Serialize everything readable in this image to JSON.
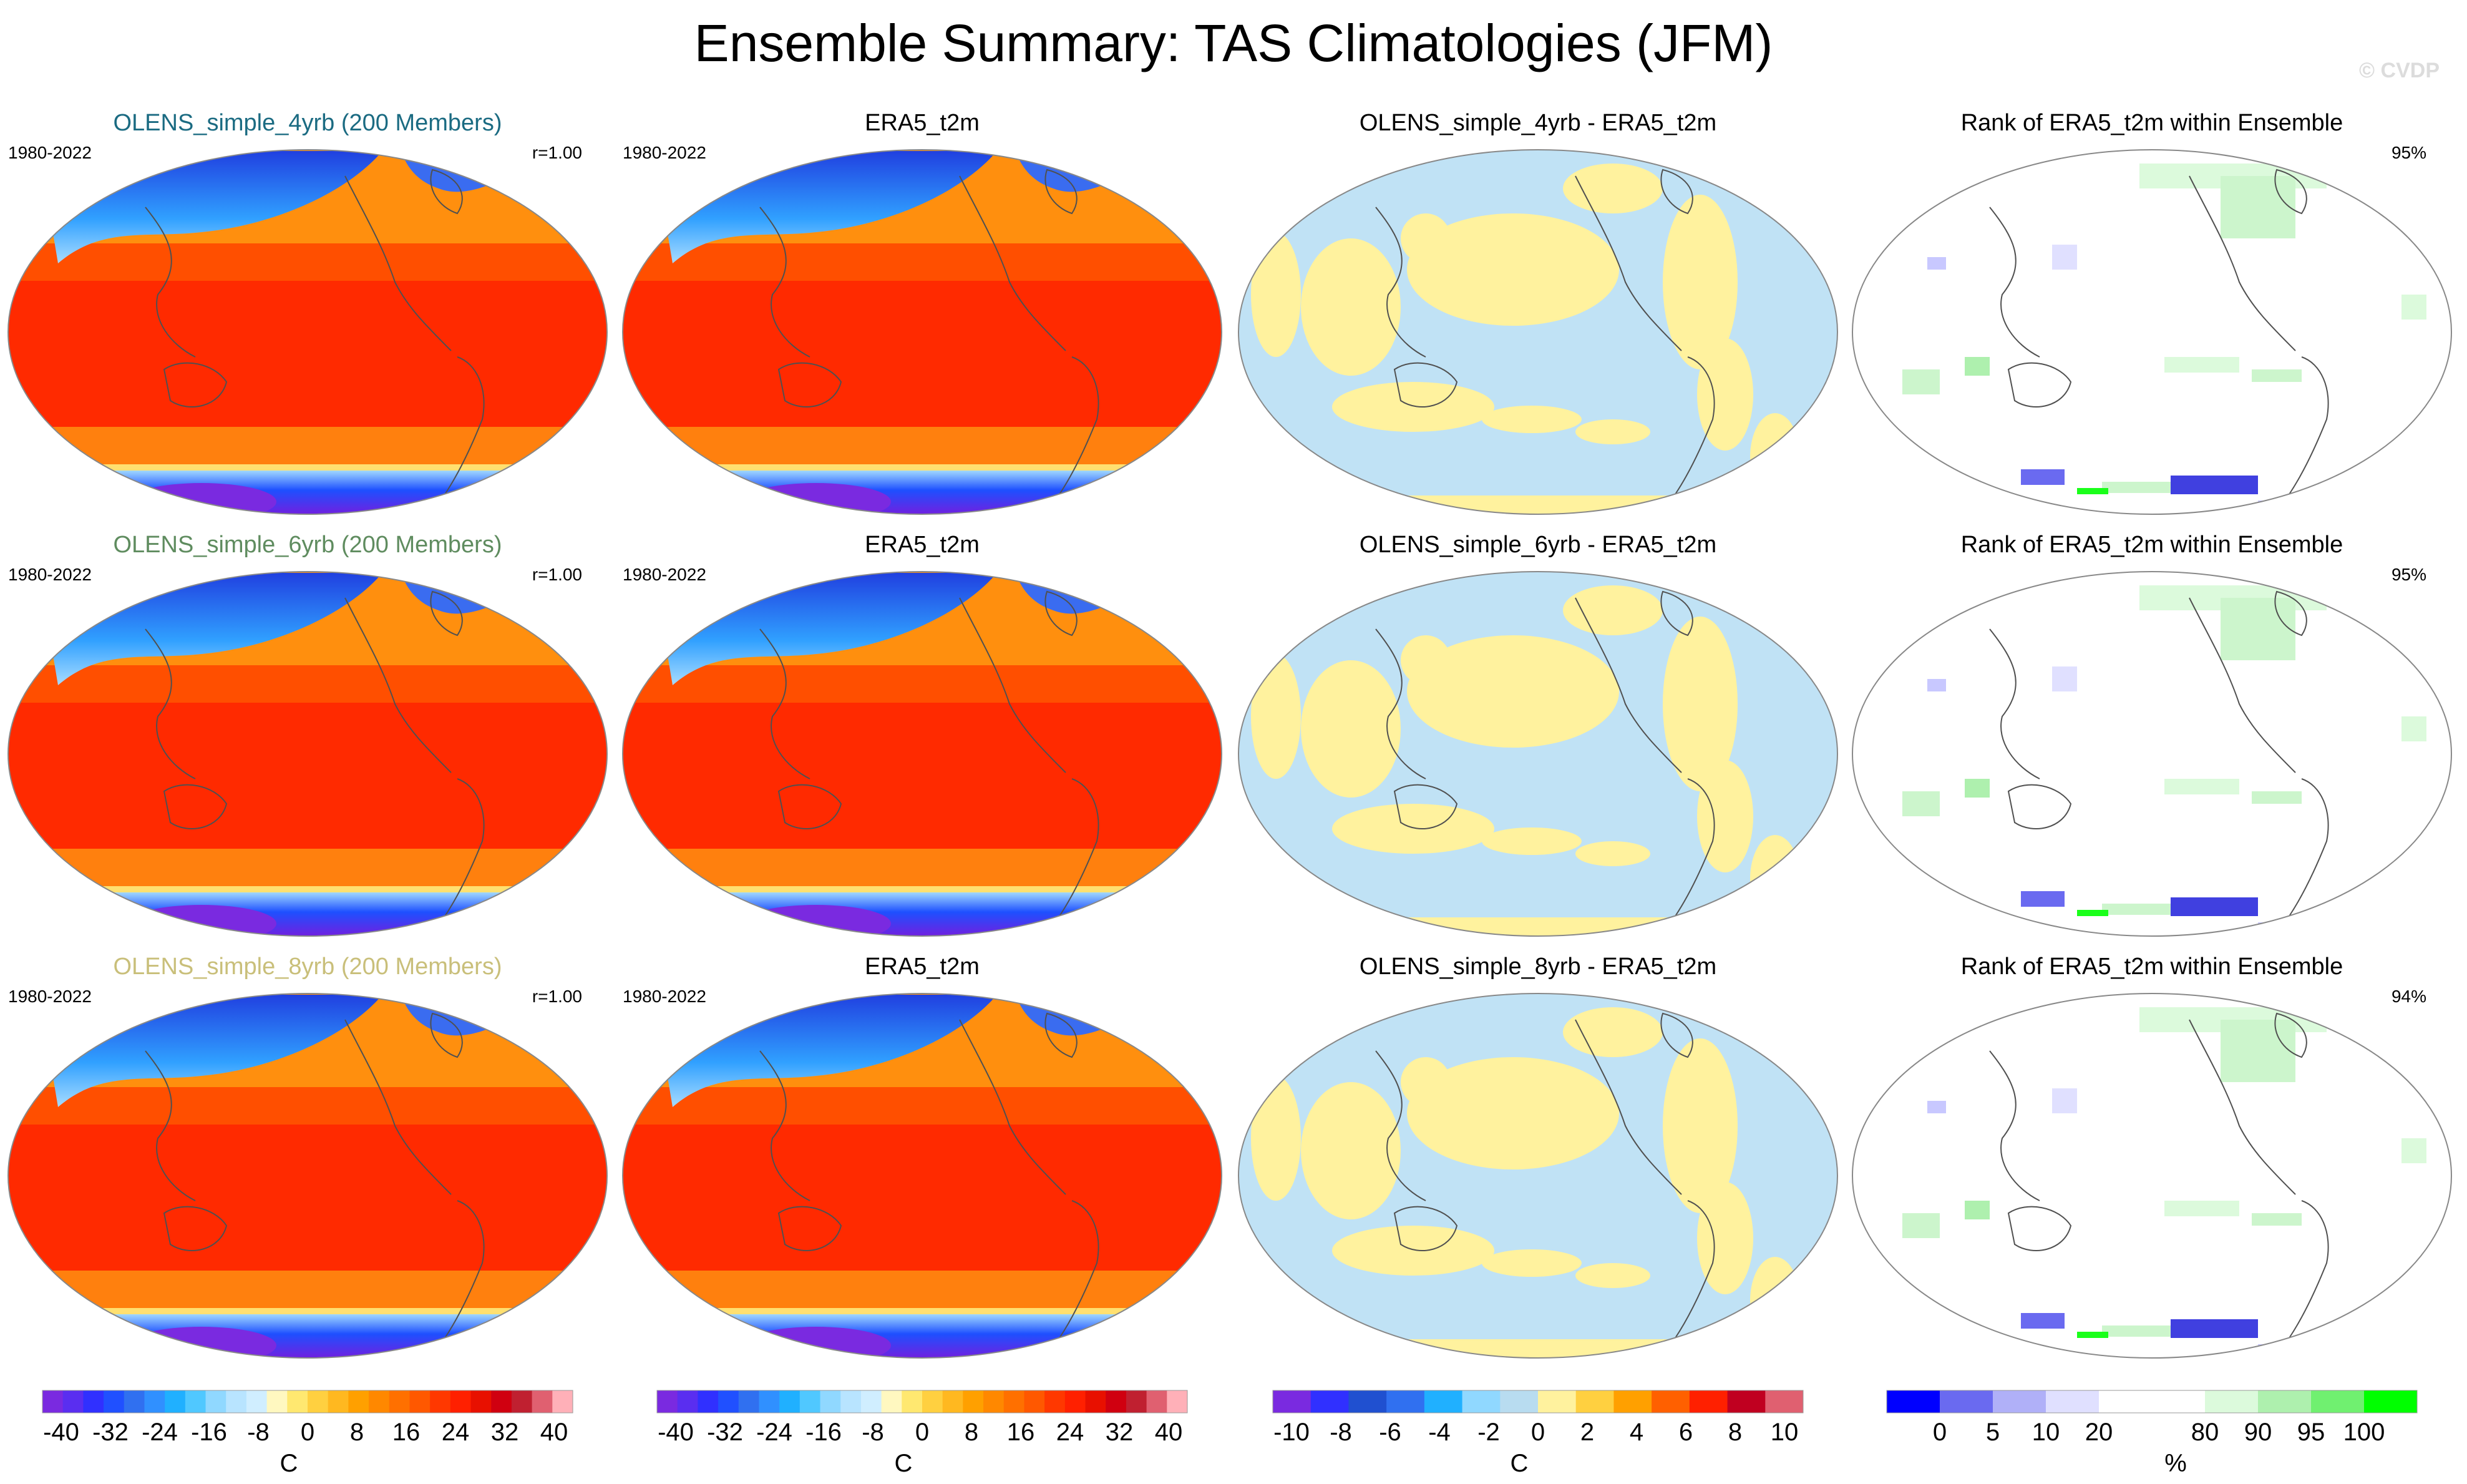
{
  "title": "Ensemble Summary: TAS Climatologies (JFM)",
  "copyright": "© CVDP",
  "rows": [
    {
      "model_title": "OLENS_simple_4yrb (200 Members)",
      "model_color": "#1b6b82",
      "period": "1980-2022",
      "r_label": "r=1.00",
      "obs_title": "ERA5_t2m",
      "obs_period": "1980-2022",
      "diff_title": "OLENS_simple_4yrb - ERA5_t2m",
      "rank_title": "Rank of ERA5_t2m within Ensemble",
      "rank_pct": "95%"
    },
    {
      "model_title": "OLENS_simple_6yrb (200 Members)",
      "model_color": "#5f8c5f",
      "period": "1980-2022",
      "r_label": "r=1.00",
      "obs_title": "ERA5_t2m",
      "obs_period": "1980-2022",
      "diff_title": "OLENS_simple_6yrb - ERA5_t2m",
      "rank_title": "Rank of ERA5_t2m within Ensemble",
      "rank_pct": "95%"
    },
    {
      "model_title": "OLENS_simple_8yrb (200 Members)",
      "model_color": "#c9bf7a",
      "period": "1980-2022",
      "r_label": "r=1.00",
      "obs_title": "ERA5_t2m",
      "obs_period": "1980-2022",
      "diff_title": "OLENS_simple_8yrb - ERA5_t2m",
      "rank_title": "Rank of ERA5_t2m within Ensemble",
      "rank_pct": "94%"
    }
  ],
  "colorbars": [
    {
      "ticks": [
        "-40",
        "-32",
        "-24",
        "-16",
        "-8",
        "0",
        "8",
        "16",
        "24",
        "32",
        "40"
      ],
      "unit": "C",
      "ncolors": 26
    },
    {
      "ticks": [
        "-40",
        "-32",
        "-24",
        "-16",
        "-8",
        "0",
        "8",
        "16",
        "24",
        "32",
        "40"
      ],
      "unit": "C",
      "ncolors": 26
    },
    {
      "ticks": [
        "-10",
        "-8",
        "-6",
        "-4",
        "-2",
        "0",
        "2",
        "4",
        "6",
        "8",
        "10"
      ],
      "unit": "C",
      "ncolors": 14
    },
    {
      "ticks": [
        "0",
        "5",
        "10",
        "20",
        "80",
        "90",
        "95",
        "100"
      ],
      "unit": "%",
      "ncolors": 10
    }
  ],
  "chart_data": {
    "type": "heatmap",
    "title": "Ensemble Summary: TAS Climatologies (JFM)",
    "climatology_range_C": [
      -40,
      40
    ],
    "difference_range_C": [
      -10,
      10
    ],
    "rank_levels_pct": [
      0,
      5,
      10,
      20,
      80,
      90,
      95,
      100
    ],
    "panels": [
      {
        "row": 1,
        "col": 1,
        "title": "OLENS_simple_4yrb (200 Members)",
        "period": "1980-2022",
        "pattern_correlation": 1.0
      },
      {
        "row": 1,
        "col": 2,
        "title": "ERA5_t2m",
        "period": "1980-2022"
      },
      {
        "row": 1,
        "col": 3,
        "title": "OLENS_simple_4yrb - ERA5_t2m"
      },
      {
        "row": 1,
        "col": 4,
        "title": "Rank of ERA5_t2m within Ensemble",
        "percent": 95
      },
      {
        "row": 2,
        "col": 1,
        "title": "OLENS_simple_6yrb (200 Members)",
        "period": "1980-2022",
        "pattern_correlation": 1.0
      },
      {
        "row": 2,
        "col": 2,
        "title": "ERA5_t2m",
        "period": "1980-2022"
      },
      {
        "row": 2,
        "col": 3,
        "title": "OLENS_simple_6yrb - ERA5_t2m"
      },
      {
        "row": 2,
        "col": 4,
        "title": "Rank of ERA5_t2m within Ensemble",
        "percent": 95
      },
      {
        "row": 3,
        "col": 1,
        "title": "OLENS_simple_8yrb (200 Members)",
        "period": "1980-2022",
        "pattern_correlation": 1.0
      },
      {
        "row": 3,
        "col": 2,
        "title": "ERA5_t2m",
        "period": "1980-2022"
      },
      {
        "row": 3,
        "col": 3,
        "title": "OLENS_simple_8yrb - ERA5_t2m"
      },
      {
        "row": 3,
        "col": 4,
        "title": "Rank of ERA5_t2m within Ensemble",
        "percent": 94
      }
    ]
  }
}
